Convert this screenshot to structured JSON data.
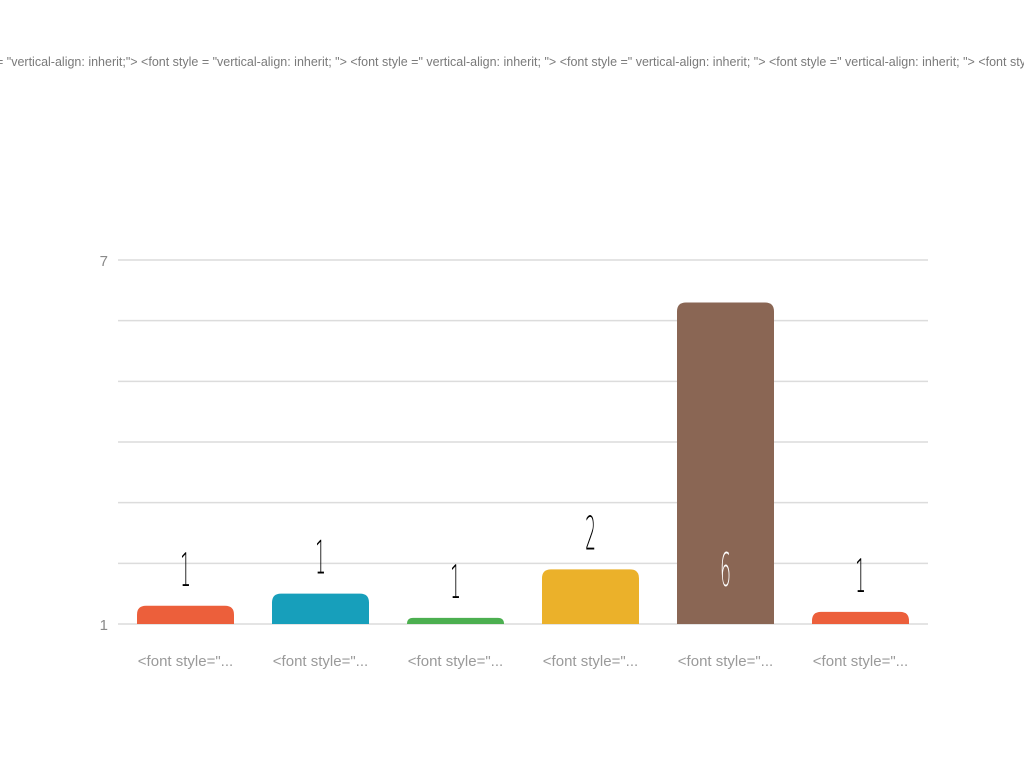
{
  "chart_data": {
    "type": "bar",
    "title": "= \"vertical-align: inherit;\"> <font style = \"vertical-align: inherit; \"> <font style =\" vertical-align: inherit; \"> <font style =\" vertical-align: inherit; \"> <font style =\" vertical-align: inherit; \"> <font style =\" vertical-align: inherit; \">",
    "categories": [
      "<font style=\"...",
      "<font style=\"...",
      "<font style=\"...",
      "<font style=\"...",
      "<font style=\"...",
      "<font style=\"..."
    ],
    "values": [
      1.3,
      1.5,
      1.1,
      1.9,
      6.3,
      1.2
    ],
    "data_labels": [
      "1",
      "1",
      "1",
      "2",
      "6",
      "1"
    ],
    "colors": [
      "#ec5f3b",
      "#179fbb",
      "#4caf50",
      "#ebb12a",
      "#8a6654",
      "#ec5f3b"
    ],
    "label_colors": [
      "#000000",
      "#000000",
      "#000000",
      "#000000",
      "#ffffff",
      "#000000"
    ],
    "ylim": [
      1,
      7
    ],
    "y_tick_labels": [
      "7",
      "1"
    ],
    "grid": true,
    "xlabel": "",
    "ylabel": ""
  }
}
